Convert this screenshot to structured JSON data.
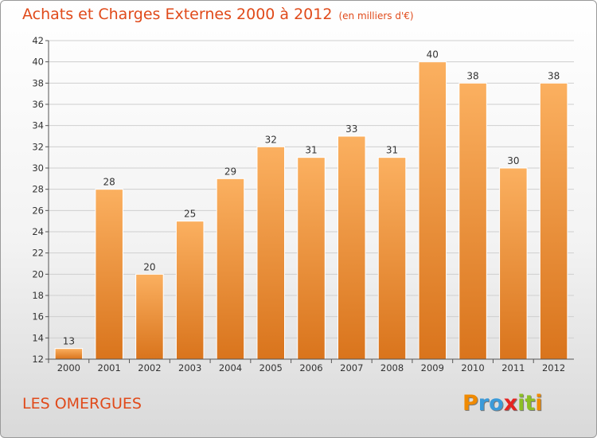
{
  "chart_data": {
    "type": "bar",
    "title": "Achats et Charges Externes 2000 à 2012",
    "unit_note": "(en milliers d'€)",
    "categories": [
      "2000",
      "2001",
      "2002",
      "2003",
      "2004",
      "2005",
      "2006",
      "2007",
      "2008",
      "2009",
      "2010",
      "2011",
      "2012"
    ],
    "values": [
      13,
      28,
      20,
      25,
      29,
      32,
      31,
      33,
      31,
      40,
      38,
      30,
      38
    ],
    "ylim": [
      12,
      42
    ],
    "yticks": [
      12,
      14,
      16,
      18,
      20,
      22,
      24,
      26,
      28,
      30,
      32,
      34,
      36,
      38,
      40,
      42
    ],
    "grid": true,
    "xlabel": "",
    "ylabel": ""
  },
  "commune": "LES OMERGUES",
  "logo": {
    "letters": [
      "P",
      "r",
      "o",
      "x",
      "i",
      "t",
      "i"
    ],
    "colors": [
      "#f08a00",
      "#3a9ad9",
      "#3a9ad9",
      "#e52421",
      "#8cbf26",
      "#8cbf26",
      "#f08a00"
    ]
  },
  "colors": {
    "title": "#e04a1a",
    "bar_light": "#fbb060",
    "bar_dark": "#d9741c",
    "grid": "#cfcfcf",
    "axis": "#555555"
  }
}
